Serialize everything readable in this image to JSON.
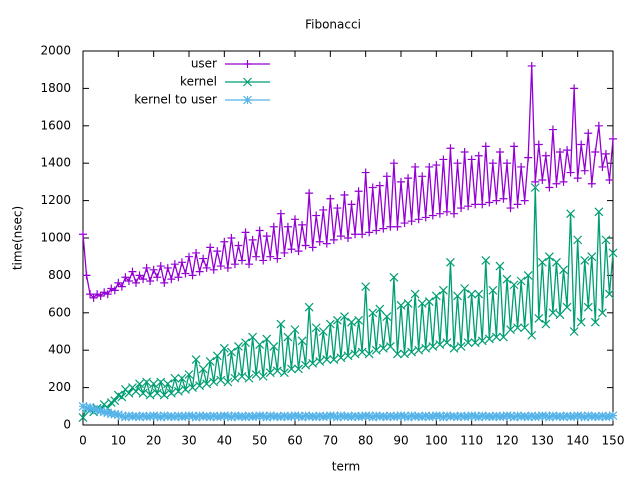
{
  "chart_data": {
    "type": "line",
    "title": "Fibonacci",
    "x_label": "term",
    "y_label": "time(nsec)",
    "xlim": [
      0,
      150
    ],
    "xticks": [
      0,
      10,
      20,
      30,
      40,
      50,
      60,
      70,
      80,
      90,
      100,
      110,
      120,
      130,
      140,
      150
    ],
    "ylim": [
      0,
      2000
    ],
    "yticks": [
      0,
      200,
      400,
      600,
      800,
      1000,
      1200,
      1400,
      1600,
      1800,
      2000
    ],
    "grid": false,
    "legend": "top-left",
    "x": [
      0,
      1,
      2,
      3,
      4,
      5,
      6,
      7,
      8,
      9,
      10,
      11,
      12,
      13,
      14,
      15,
      16,
      17,
      18,
      19,
      20,
      21,
      22,
      23,
      24,
      25,
      26,
      27,
      28,
      29,
      30,
      31,
      32,
      33,
      34,
      35,
      36,
      37,
      38,
      39,
      40,
      41,
      42,
      43,
      44,
      45,
      46,
      47,
      48,
      49,
      50,
      51,
      52,
      53,
      54,
      55,
      56,
      57,
      58,
      59,
      60,
      61,
      62,
      63,
      64,
      65,
      66,
      67,
      68,
      69,
      70,
      71,
      72,
      73,
      74,
      75,
      76,
      77,
      78,
      79,
      80,
      81,
      82,
      83,
      84,
      85,
      86,
      87,
      88,
      89,
      90,
      91,
      92,
      93,
      94,
      95,
      96,
      97,
      98,
      99,
      100,
      101,
      102,
      103,
      104,
      105,
      106,
      107,
      108,
      109,
      110,
      111,
      112,
      113,
      114,
      115,
      116,
      117,
      118,
      119,
      120,
      121,
      122,
      123,
      124,
      125,
      126,
      127,
      128,
      129,
      130,
      131,
      132,
      133,
      134,
      135,
      136,
      137,
      138,
      139,
      140,
      141,
      142,
      143,
      144,
      145,
      146,
      147,
      148,
      149,
      150
    ],
    "series": [
      {
        "name": "user",
        "color": "#9400d3",
        "marker": "plus",
        "values": [
          1020,
          800,
          700,
          680,
          700,
          690,
          710,
          700,
          730,
          720,
          760,
          740,
          790,
          770,
          820,
          760,
          800,
          780,
          840,
          770,
          830,
          790,
          850,
          760,
          840,
          780,
          860,
          790,
          870,
          810,
          900,
          800,
          920,
          820,
          890,
          840,
          950,
          830,
          930,
          850,
          980,
          840,
          1000,
          860,
          960,
          880,
          1030,
          860,
          990,
          900,
          1040,
          880,
          1010,
          900,
          1060,
          890,
          1130,
          920,
          1060,
          940,
          1100,
          930,
          1070,
          960,
          1240,
          950,
          1120,
          980,
          1150,
          970,
          1210,
          990,
          1160,
          1010,
          1230,
          1000,
          1180,
          1020,
          1250,
          1020,
          1350,
          1030,
          1270,
          1040,
          1280,
          1050,
          1330,
          1060,
          1400,
          1060,
          1300,
          1080,
          1320,
          1090,
          1380,
          1100,
          1330,
          1110,
          1380,
          1120,
          1390,
          1130,
          1420,
          1140,
          1480,
          1130,
          1400,
          1160,
          1460,
          1170,
          1420,
          1180,
          1440,
          1180,
          1490,
          1190,
          1400,
          1200,
          1460,
          1210,
          1400,
          1160,
          1490,
          1180,
          1380,
          1200,
          1430,
          1920,
          1300,
          1500,
          1310,
          1440,
          1270,
          1580,
          1290,
          1460,
          1300,
          1470,
          1350,
          1800,
          1320,
          1500,
          1360,
          1560,
          1290,
          1460,
          1600,
          1380,
          1450,
          1310,
          1530
        ]
      },
      {
        "name": "kernel",
        "color": "#009e73",
        "marker": "cross",
        "values": [
          40,
          90,
          80,
          70,
          90,
          80,
          110,
          90,
          120,
          130,
          160,
          150,
          190,
          170,
          200,
          180,
          220,
          170,
          230,
          160,
          220,
          170,
          230,
          160,
          220,
          170,
          250,
          180,
          250,
          190,
          270,
          200,
          350,
          210,
          300,
          220,
          340,
          230,
          370,
          240,
          410,
          230,
          390,
          250,
          420,
          260,
          440,
          250,
          470,
          270,
          430,
          260,
          460,
          280,
          420,
          290,
          540,
          280,
          470,
          300,
          510,
          300,
          450,
          320,
          630,
          330,
          520,
          340,
          500,
          350,
          540,
          350,
          560,
          360,
          580,
          370,
          550,
          380,
          560,
          390,
          740,
          380,
          600,
          400,
          620,
          410,
          580,
          420,
          790,
          380,
          640,
          380,
          650,
          390,
          700,
          400,
          650,
          410,
          660,
          420,
          690,
          430,
          720,
          440,
          870,
          410,
          690,
          420,
          730,
          440,
          700,
          440,
          700,
          450,
          880,
          460,
          720,
          470,
          850,
          470,
          780,
          510,
          750,
          520,
          770,
          520,
          800,
          480,
          1270,
          570,
          870,
          540,
          900,
          600,
          870,
          590,
          830,
          630,
          1130,
          500,
          990,
          550,
          880,
          630,
          900,
          550,
          1140,
          600,
          990,
          700,
          920
        ]
      },
      {
        "name": "kernel to user",
        "color": "#56b4e9",
        "marker": "star",
        "values": [
          100,
          90,
          95,
          85,
          80,
          75,
          70,
          65,
          60,
          58,
          55,
          48,
          42,
          50,
          45,
          47,
          43,
          49,
          44,
          46,
          50,
          48,
          42,
          50,
          45,
          47,
          43,
          49,
          44,
          46,
          50,
          48,
          42,
          50,
          45,
          47,
          43,
          49,
          44,
          46,
          50,
          48,
          42,
          50,
          45,
          47,
          43,
          49,
          44,
          46,
          50,
          48,
          42,
          50,
          45,
          47,
          43,
          49,
          44,
          46,
          50,
          48,
          42,
          50,
          45,
          47,
          43,
          49,
          44,
          46,
          50,
          48,
          42,
          50,
          45,
          47,
          43,
          49,
          44,
          46,
          50,
          48,
          42,
          50,
          45,
          47,
          43,
          49,
          44,
          46,
          50,
          48,
          42,
          50,
          45,
          47,
          43,
          49,
          44,
          46,
          50,
          48,
          42,
          50,
          45,
          47,
          43,
          49,
          44,
          46,
          50,
          48,
          42,
          50,
          45,
          47,
          43,
          49,
          44,
          46,
          50,
          48,
          42,
          50,
          45,
          47,
          43,
          49,
          44,
          46,
          50,
          48,
          42,
          50,
          45,
          47,
          43,
          49,
          44,
          46,
          50,
          48,
          42,
          50,
          45,
          47,
          43,
          49,
          44,
          46,
          50
        ]
      }
    ]
  }
}
